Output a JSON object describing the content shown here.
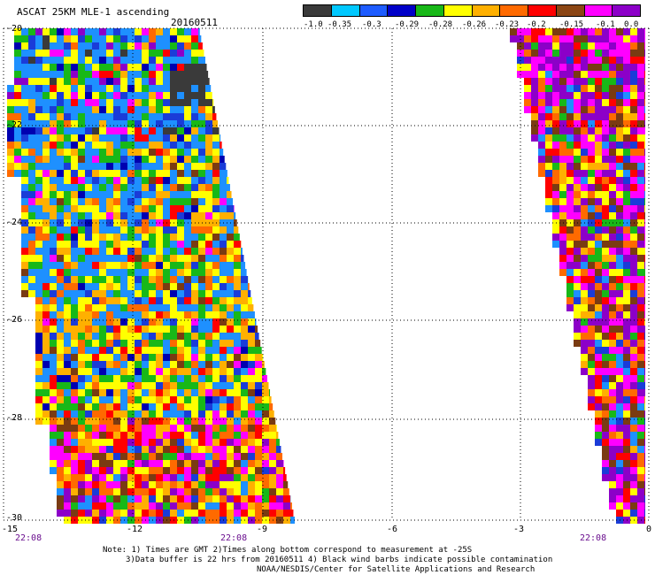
{
  "title": "ASCAT 25KM MLE-1 ascending",
  "date": "20160511",
  "legend": {
    "labels": [
      "-1.0",
      "-0.35",
      "-0.3",
      "-0.29",
      "-0.28",
      "-0.26",
      "-0.23",
      "-0.2",
      "-0.15",
      "-0.1",
      "0.0"
    ],
    "colors": [
      "#3a3a3a",
      "#00c8ff",
      "#1e5cff",
      "#0000c8",
      "#18b818",
      "#ffff00",
      "#ffb000",
      "#ff6a00",
      "#ff0000",
      "#8b4513",
      "#ff00ff",
      "#8c00c8"
    ]
  },
  "axes": {
    "y_ticks": [
      "-20",
      "-22",
      "-24",
      "-26",
      "-28",
      "-30"
    ],
    "x_ticks": [
      "-15",
      "-12",
      "-9",
      "-6",
      "-3",
      "0"
    ],
    "x_range": [
      -15,
      0
    ],
    "y_range": [
      -30,
      -20
    ]
  },
  "time_labels": [
    "22:08",
    "22:08",
    "22:08"
  ],
  "notes": [
    "Note: 1) Times are GMT 2)Times along bottom correspond to measurement at -25S",
    "3)Data buffer is 22 hrs from 20160511 4) Black wind barbs indicate possible contamination",
    "NOAA/NESDIS/Center for Satellite Applications and Research"
  ]
}
